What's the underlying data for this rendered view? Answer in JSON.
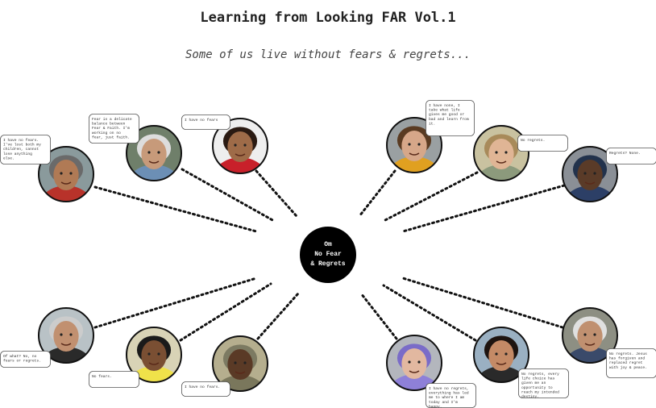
{
  "header": {
    "title": "Learning from Looking FAR Vol.1",
    "subtitle": "Some of us live without fears & regrets..."
  },
  "center": {
    "lines": [
      "Om",
      "No Fear",
      "& Regrets"
    ],
    "fill": "#000000",
    "text_color": "#ffffff"
  },
  "people": [
    {
      "id": "p1",
      "quote": "I have no fears. I've lost both my children, cannot lose anything else.",
      "skin": "#b07a55",
      "hair": "#6a6a6a",
      "bg": "#8a9a9c",
      "accent": "#b8322a",
      "icon": "portrait-icon"
    },
    {
      "id": "p2",
      "quote": "Fear is a delicate balance between Fear & Faith. I'm working on no fear, just faith.",
      "skin": "#c79a7a",
      "hair": "#dddddd",
      "bg": "#6f7f6a",
      "accent": "#6c8fb5",
      "icon": "portrait-icon"
    },
    {
      "id": "p3",
      "quote": "I have no fears",
      "skin": "#9e6b48",
      "hair": "#2a1a12",
      "bg": "#eeeeee",
      "accent": "#c8202a",
      "icon": "portrait-icon"
    },
    {
      "id": "p4",
      "quote": "I have none, I take what life gives me good or bad and learn from it.",
      "skin": "#d6a789",
      "hair": "#5a3b22",
      "bg": "#9aa0a2",
      "accent": "#e0a020",
      "icon": "portrait-icon"
    },
    {
      "id": "p5",
      "quote": "No regrets.",
      "skin": "#e0b595",
      "hair": "#a88a5a",
      "bg": "#c9c2a0",
      "accent": "#8c9a7c",
      "icon": "portrait-icon"
    },
    {
      "id": "p6",
      "quote": "Regrets? None.",
      "skin": "#5a3b28",
      "hair": "#22324c",
      "bg": "#8a8f96",
      "accent": "#2c3f66",
      "icon": "portrait-icon"
    },
    {
      "id": "p7",
      "quote": "Of what? No, no fears or regrets.",
      "skin": "#c19070",
      "hair": "#cccccc",
      "bg": "#b9c2c6",
      "accent": "#2a2a2a",
      "icon": "portrait-icon"
    },
    {
      "id": "p8",
      "quote": "No fears.",
      "skin": "#7a4f33",
      "hair": "#1a1a1a",
      "bg": "#d8d3b6",
      "accent": "#f0e24a",
      "icon": "portrait-icon"
    },
    {
      "id": "p9",
      "quote": "I have no fears.",
      "skin": "#5a3a26",
      "hair": "#7c7a62",
      "bg": "#b5ae8e",
      "accent": "#7a775c",
      "icon": "portrait-icon"
    },
    {
      "id": "p10",
      "quote": "I have no regrets, everything has led me to where I am today and I'm happy.",
      "skin": "#e2b8a0",
      "hair": "#7a6cc8",
      "bg": "#b3b6bd",
      "accent": "#8e80d8",
      "icon": "portrait-icon"
    },
    {
      "id": "p11",
      "quote": "No regrets, every life choice has given me an opportunity to reach my intended destiny.",
      "skin": "#c48a66",
      "hair": "#1e1410",
      "bg": "#9ab0c2",
      "accent": "#2a2a2a",
      "icon": "portrait-icon"
    },
    {
      "id": "p12",
      "quote": "No regrets. Jesus has forgiven and replaced regret with joy & peace.",
      "skin": "#c09070",
      "hair": "#e0e0e0",
      "bg": "#8d8f83",
      "accent": "#3a4a6a",
      "icon": "portrait-icon"
    }
  ]
}
